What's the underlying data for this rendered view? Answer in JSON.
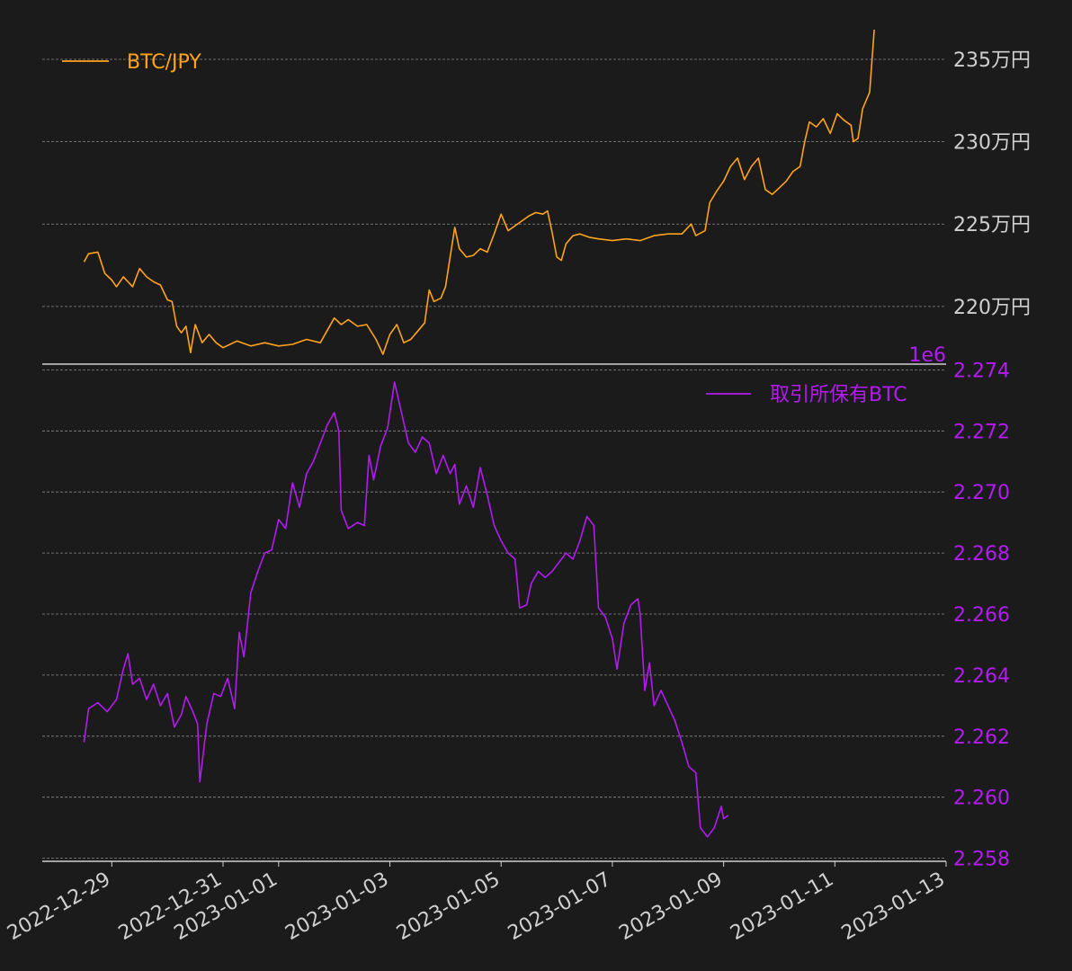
{
  "colors": {
    "background": "#1b1b1b",
    "grid": "#8a8a8a",
    "axis_line": "#cfcfcf",
    "btc_jpy": "#ffa31a",
    "holdings": "#b31bf2",
    "tick_text": "#d0d0d0"
  },
  "chart_data": [
    {
      "type": "line",
      "panel": "top",
      "ylim": [
        2165000,
        2374000
      ],
      "yticks": [
        2200000,
        2250000,
        2300000,
        2350000
      ],
      "ytick_labels": [
        "220万円",
        "225万円",
        "230万円",
        "235万円"
      ],
      "grid": true,
      "legend_position": "top-left",
      "series": [
        {
          "name": "BTC/JPY",
          "color": "#ffa31a",
          "points": [
            [
              "2022-12-28 12:00",
              2227000
            ],
            [
              "2022-12-28 14:00",
              2232000
            ],
            [
              "2022-12-28 18:00",
              2233000
            ],
            [
              "2022-12-28 21:00",
              2220000
            ],
            [
              "2022-12-29 00:00",
              2216000
            ],
            [
              "2022-12-29 02:00",
              2212000
            ],
            [
              "2022-12-29 05:00",
              2218000
            ],
            [
              "2022-12-29 09:00",
              2212000
            ],
            [
              "2022-12-29 12:00",
              2223000
            ],
            [
              "2022-12-29 15:00",
              2218000
            ],
            [
              "2022-12-29 18:00",
              2215000
            ],
            [
              "2022-12-29 21:00",
              2213000
            ],
            [
              "2022-12-30 00:00",
              2204000
            ],
            [
              "2022-12-30 02:00",
              2203000
            ],
            [
              "2022-12-30 04:00",
              2188000
            ],
            [
              "2022-12-30 06:00",
              2184000
            ],
            [
              "2022-12-30 08:00",
              2188000
            ],
            [
              "2022-12-30 10:00",
              2172000
            ],
            [
              "2022-12-30 12:00",
              2189000
            ],
            [
              "2022-12-30 15:00",
              2178000
            ],
            [
              "2022-12-30 18:00",
              2183000
            ],
            [
              "2022-12-30 21:00",
              2178000
            ],
            [
              "2022-12-31 00:00",
              2175000
            ],
            [
              "2022-12-31 06:00",
              2179000
            ],
            [
              "2022-12-31 12:00",
              2176000
            ],
            [
              "2022-12-31 18:00",
              2178000
            ],
            [
              "2023-01-01 00:00",
              2176000
            ],
            [
              "2023-01-01 06:00",
              2177000
            ],
            [
              "2023-01-01 12:00",
              2180000
            ],
            [
              "2023-01-01 18:00",
              2178000
            ],
            [
              "2023-01-02 00:00",
              2193000
            ],
            [
              "2023-01-02 03:00",
              2189000
            ],
            [
              "2023-01-02 06:00",
              2192000
            ],
            [
              "2023-01-02 10:00",
              2188000
            ],
            [
              "2023-01-02 14:00",
              2189000
            ],
            [
              "2023-01-02 18:00",
              2180000
            ],
            [
              "2023-01-02 21:00",
              2171000
            ],
            [
              "2023-01-03 00:00",
              2183000
            ],
            [
              "2023-01-03 03:00",
              2189000
            ],
            [
              "2023-01-03 06:00",
              2178000
            ],
            [
              "2023-01-03 09:00",
              2180000
            ],
            [
              "2023-01-03 12:00",
              2185000
            ],
            [
              "2023-01-03 15:00",
              2190000
            ],
            [
              "2023-01-03 17:00",
              2210000
            ],
            [
              "2023-01-03 19:00",
              2203000
            ],
            [
              "2023-01-03 22:00",
              2205000
            ],
            [
              "2023-01-04 00:00",
              2212000
            ],
            [
              "2023-01-04 02:00",
              2230000
            ],
            [
              "2023-01-04 04:00",
              2248000
            ],
            [
              "2023-01-04 06:00",
              2235000
            ],
            [
              "2023-01-04 09:00",
              2230000
            ],
            [
              "2023-01-04 12:00",
              2231000
            ],
            [
              "2023-01-04 15:00",
              2235000
            ],
            [
              "2023-01-04 18:00",
              2233000
            ],
            [
              "2023-01-04 21:00",
              2244000
            ],
            [
              "2023-01-05 00:00",
              2256000
            ],
            [
              "2023-01-05 03:00",
              2246000
            ],
            [
              "2023-01-05 06:00",
              2249000
            ],
            [
              "2023-01-05 09:00",
              2252000
            ],
            [
              "2023-01-05 12:00",
              2255000
            ],
            [
              "2023-01-05 15:00",
              2257000
            ],
            [
              "2023-01-05 18:00",
              2256000
            ],
            [
              "2023-01-05 20:00",
              2258000
            ],
            [
              "2023-01-05 22:00",
              2245000
            ],
            [
              "2023-01-06 00:00",
              2230000
            ],
            [
              "2023-01-06 02:00",
              2228000
            ],
            [
              "2023-01-06 04:00",
              2238000
            ],
            [
              "2023-01-06 07:00",
              2243000
            ],
            [
              "2023-01-06 10:00",
              2244000
            ],
            [
              "2023-01-06 14:00",
              2242000
            ],
            [
              "2023-01-06 18:00",
              2241000
            ],
            [
              "2023-01-07 00:00",
              2240000
            ],
            [
              "2023-01-07 06:00",
              2241000
            ],
            [
              "2023-01-07 12:00",
              2240000
            ],
            [
              "2023-01-07 18:00",
              2243000
            ],
            [
              "2023-01-08 00:00",
              2244000
            ],
            [
              "2023-01-08 06:00",
              2244000
            ],
            [
              "2023-01-08 10:00",
              2250000
            ],
            [
              "2023-01-08 12:00",
              2243000
            ],
            [
              "2023-01-08 16:00",
              2246000
            ],
            [
              "2023-01-08 18:00",
              2263000
            ],
            [
              "2023-01-08 21:00",
              2270000
            ],
            [
              "2023-01-09 00:00",
              2276000
            ],
            [
              "2023-01-09 03:00",
              2285000
            ],
            [
              "2023-01-09 06:00",
              2290000
            ],
            [
              "2023-01-09 09:00",
              2277000
            ],
            [
              "2023-01-09 12:00",
              2285000
            ],
            [
              "2023-01-09 15:00",
              2290000
            ],
            [
              "2023-01-09 18:00",
              2271000
            ],
            [
              "2023-01-09 21:00",
              2268000
            ],
            [
              "2023-01-10 00:00",
              2272000
            ],
            [
              "2023-01-10 03:00",
              2276000
            ],
            [
              "2023-01-10 06:00",
              2282000
            ],
            [
              "2023-01-10 09:00",
              2285000
            ],
            [
              "2023-01-10 11:00",
              2300000
            ],
            [
              "2023-01-10 13:00",
              2312000
            ],
            [
              "2023-01-10 16:00",
              2309000
            ],
            [
              "2023-01-10 19:00",
              2314000
            ],
            [
              "2023-01-10 22:00",
              2305000
            ],
            [
              "2023-01-11 01:00",
              2317000
            ],
            [
              "2023-01-11 04:00",
              2313000
            ],
            [
              "2023-01-11 07:00",
              2310000
            ],
            [
              "2023-01-11 08:00",
              2300000
            ],
            [
              "2023-01-11 10:00",
              2302000
            ],
            [
              "2023-01-11 12:00",
              2320000
            ],
            [
              "2023-01-11 15:00",
              2330000
            ],
            [
              "2023-01-11 17:00",
              2368000
            ]
          ]
        }
      ]
    },
    {
      "type": "line",
      "panel": "bottom",
      "ylim": [
        2257900,
        2274100
      ],
      "yticks": [
        2258000,
        2260000,
        2262000,
        2264000,
        2266000,
        2268000,
        2270000,
        2272000,
        2274000
      ],
      "ytick_labels": [
        "2.258",
        "2.260",
        "2.262",
        "2.264",
        "2.266",
        "2.268",
        "2.270",
        "2.272",
        "2.274"
      ],
      "offset_label": "1e6",
      "grid": true,
      "legend_position": "top-right",
      "x_tick_labels": [
        "2022-12-29",
        "2022-12-31",
        "2023-01-01",
        "2023-01-03",
        "2023-01-05",
        "2023-01-07",
        "2023-01-09",
        "2023-01-11",
        "2023-01-13"
      ],
      "x_tick_dates": [
        "2022-12-29",
        "2022-12-31",
        "2023-01-01",
        "2023-01-03",
        "2023-01-05",
        "2023-01-07",
        "2023-01-09",
        "2023-01-11",
        "2023-01-13"
      ],
      "series": [
        {
          "name": "取引所保有BTC",
          "color": "#b31bf2",
          "points": [
            [
              "2022-12-28 12:00",
              2261800
            ],
            [
              "2022-12-28 14:00",
              2262900
            ],
            [
              "2022-12-28 18:00",
              2263100
            ],
            [
              "2022-12-28 22:00",
              2262800
            ],
            [
              "2022-12-29 02:00",
              2263200
            ],
            [
              "2022-12-29 05:00",
              2264200
            ],
            [
              "2022-12-29 07:00",
              2264700
            ],
            [
              "2022-12-29 09:00",
              2263700
            ],
            [
              "2022-12-29 12:00",
              2263900
            ],
            [
              "2022-12-29 15:00",
              2263200
            ],
            [
              "2022-12-29 18:00",
              2263700
            ],
            [
              "2022-12-29 21:00",
              2263000
            ],
            [
              "2022-12-30 00:00",
              2263400
            ],
            [
              "2022-12-30 03:00",
              2262300
            ],
            [
              "2022-12-30 06:00",
              2262700
            ],
            [
              "2022-12-30 08:00",
              2263300
            ],
            [
              "2022-12-30 11:00",
              2262800
            ],
            [
              "2022-12-30 13:00",
              2262400
            ],
            [
              "2022-12-30 14:00",
              2260500
            ],
            [
              "2022-12-30 17:00",
              2262400
            ],
            [
              "2022-12-30 20:00",
              2263400
            ],
            [
              "2022-12-30 23:00",
              2263300
            ],
            [
              "2022-12-31 02:00",
              2263900
            ],
            [
              "2022-12-31 05:00",
              2262900
            ],
            [
              "2022-12-31 07:00",
              2265400
            ],
            [
              "2022-12-31 09:00",
              2264600
            ],
            [
              "2022-12-31 12:00",
              2266700
            ],
            [
              "2022-12-31 15:00",
              2267400
            ],
            [
              "2022-12-31 18:00",
              2268000
            ],
            [
              "2022-12-31 21:00",
              2268100
            ],
            [
              "2023-01-01 00:00",
              2269100
            ],
            [
              "2023-01-01 03:00",
              2268800
            ],
            [
              "2023-01-01 06:00",
              2270300
            ],
            [
              "2023-01-01 09:00",
              2269500
            ],
            [
              "2023-01-01 12:00",
              2270600
            ],
            [
              "2023-01-01 15:00",
              2271000
            ],
            [
              "2023-01-01 18:00",
              2271600
            ],
            [
              "2023-01-01 21:00",
              2272200
            ],
            [
              "2023-01-02 00:00",
              2272600
            ],
            [
              "2023-01-02 02:00",
              2272000
            ],
            [
              "2023-01-02 03:00",
              2269400
            ],
            [
              "2023-01-02 06:00",
              2268800
            ],
            [
              "2023-01-02 10:00",
              2269000
            ],
            [
              "2023-01-02 13:00",
              2268900
            ],
            [
              "2023-01-02 15:00",
              2271200
            ],
            [
              "2023-01-02 17:00",
              2270400
            ],
            [
              "2023-01-02 20:00",
              2271500
            ],
            [
              "2023-01-02 23:00",
              2272100
            ],
            [
              "2023-01-03 02:00",
              2273600
            ],
            [
              "2023-01-03 05:00",
              2272600
            ],
            [
              "2023-01-03 08:00",
              2271600
            ],
            [
              "2023-01-03 11:00",
              2271300
            ],
            [
              "2023-01-03 14:00",
              2271800
            ],
            [
              "2023-01-03 17:00",
              2271600
            ],
            [
              "2023-01-03 20:00",
              2270600
            ],
            [
              "2023-01-03 23:00",
              2271200
            ],
            [
              "2023-01-04 02:00",
              2270600
            ],
            [
              "2023-01-04 04:00",
              2270900
            ],
            [
              "2023-01-04 06:00",
              2269600
            ],
            [
              "2023-01-04 09:00",
              2270200
            ],
            [
              "2023-01-04 12:00",
              2269500
            ],
            [
              "2023-01-04 15:00",
              2270800
            ],
            [
              "2023-01-04 18:00",
              2269900
            ],
            [
              "2023-01-04 21:00",
              2268900
            ],
            [
              "2023-01-05 00:00",
              2268400
            ],
            [
              "2023-01-05 03:00",
              2268000
            ],
            [
              "2023-01-05 06:00",
              2267800
            ],
            [
              "2023-01-05 08:00",
              2266200
            ],
            [
              "2023-01-05 11:00",
              2266300
            ],
            [
              "2023-01-05 13:00",
              2267000
            ],
            [
              "2023-01-05 16:00",
              2267400
            ],
            [
              "2023-01-05 19:00",
              2267200
            ],
            [
              "2023-01-05 22:00",
              2267400
            ],
            [
              "2023-01-06 01:00",
              2267700
            ],
            [
              "2023-01-06 04:00",
              2268000
            ],
            [
              "2023-01-06 07:00",
              2267800
            ],
            [
              "2023-01-06 10:00",
              2268400
            ],
            [
              "2023-01-06 13:00",
              2269200
            ],
            [
              "2023-01-06 16:00",
              2268900
            ],
            [
              "2023-01-06 18:00",
              2266200
            ],
            [
              "2023-01-06 21:00",
              2265900
            ],
            [
              "2023-01-07 00:00",
              2265200
            ],
            [
              "2023-01-07 02:00",
              2264200
            ],
            [
              "2023-01-07 05:00",
              2265700
            ],
            [
              "2023-01-07 08:00",
              2266300
            ],
            [
              "2023-01-07 11:00",
              2266500
            ],
            [
              "2023-01-07 12:00",
              2266000
            ],
            [
              "2023-01-07 14:00",
              2263500
            ],
            [
              "2023-01-07 16:00",
              2264400
            ],
            [
              "2023-01-07 18:00",
              2263000
            ],
            [
              "2023-01-07 21:00",
              2263500
            ],
            [
              "2023-01-08 00:00",
              2263000
            ],
            [
              "2023-01-08 03:00",
              2262500
            ],
            [
              "2023-01-08 06:00",
              2261800
            ],
            [
              "2023-01-08 09:00",
              2261000
            ],
            [
              "2023-01-08 12:00",
              2260800
            ],
            [
              "2023-01-08 14:00",
              2259000
            ],
            [
              "2023-01-08 17:00",
              2258700
            ],
            [
              "2023-01-08 20:00",
              2259000
            ],
            [
              "2023-01-08 23:00",
              2259700
            ],
            [
              "2023-01-09 00:00",
              2259300
            ],
            [
              "2023-01-09 02:00",
              2259400
            ]
          ]
        }
      ]
    }
  ]
}
